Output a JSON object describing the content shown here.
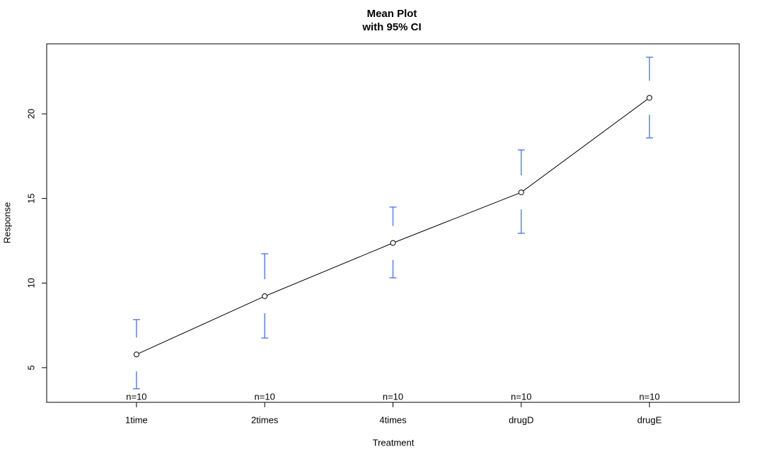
{
  "chart_data": {
    "type": "line",
    "title": "Mean Plot",
    "subtitle": "with 95% CI",
    "x_label": "Treatment",
    "y_label": "Response",
    "categories": [
      "1time",
      "2times",
      "4times",
      "drugD",
      "drugE"
    ],
    "series": [
      {
        "name": "Response",
        "color": "#000000",
        "ci_color": "#4a6fe3",
        "values": [
          5.78,
          9.22,
          12.37,
          15.36,
          20.95
        ],
        "ci_lower": [
          3.75,
          6.75,
          10.31,
          12.94,
          18.58
        ],
        "ci_upper": [
          7.84,
          11.73,
          14.49,
          17.87,
          23.35
        ]
      }
    ],
    "n_labels": [
      "n=10",
      "n=10",
      "n=10",
      "n=10",
      "n=10"
    ],
    "ylim": [
      2.95,
      24.14
    ],
    "yticks": [
      5,
      10,
      15,
      20
    ]
  }
}
